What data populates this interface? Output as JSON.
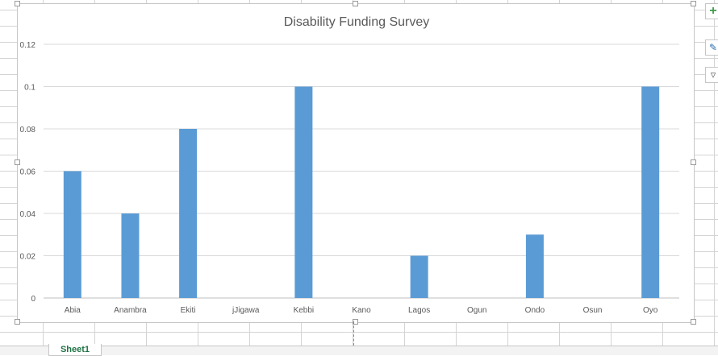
{
  "chart_data": {
    "type": "bar",
    "title": "Disability Funding Survey",
    "categories": [
      "Abia",
      "Anambra",
      "Ekiti",
      "jJigawa",
      "Kebbi",
      "Kano",
      "Lagos",
      "Ogun",
      "Ondo",
      "Osun",
      "Oyo"
    ],
    "values": [
      0.06,
      0.04,
      0.08,
      0,
      0.1,
      0,
      0.02,
      0,
      0.03,
      0,
      0.1
    ],
    "ylim": [
      0,
      0.12
    ],
    "yticks": [
      "0",
      "0.02",
      "0.04",
      "0.06",
      "0.08",
      "0.1",
      "0.12"
    ],
    "ytick_values": [
      0,
      0.02,
      0.04,
      0.06,
      0.08,
      0.1,
      0.12
    ],
    "grid": true,
    "bar_color": "#5b9bd5"
  },
  "sheet": {
    "active_tab": "Sheet1"
  },
  "icons": {
    "add": "plus-icon",
    "style": "brush-icon",
    "filter": "filter-icon"
  }
}
